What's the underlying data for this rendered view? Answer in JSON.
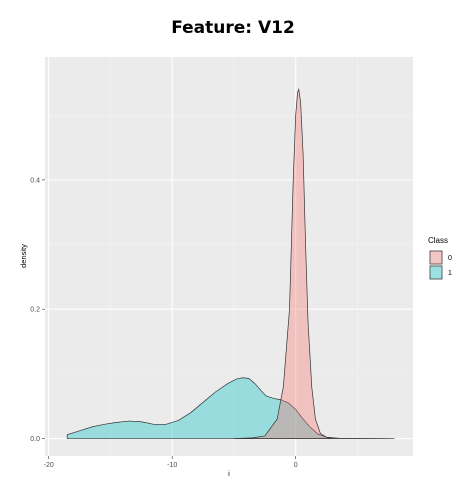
{
  "chart_data": {
    "type": "area",
    "title": "Feature:  V12",
    "xlabel": "i",
    "ylabel": "density",
    "xlim": [
      -20.3,
      9.5
    ],
    "ylim": [
      -0.027,
      0.59
    ],
    "x_ticks": [
      -20,
      -10,
      0
    ],
    "x_tick_labels": [
      "-20",
      "-10",
      "0"
    ],
    "y_ticks": [
      0.0,
      0.2,
      0.4
    ],
    "y_tick_labels": [
      "0.0",
      "0.2",
      "0.4"
    ],
    "grid": true,
    "legend": {
      "title": "Class",
      "position": "right"
    },
    "series": [
      {
        "name": "0",
        "fill": "#f8766d",
        "points": [
          [
            -5,
            0
          ],
          [
            -3.5,
            0.001
          ],
          [
            -2.5,
            0.004
          ],
          [
            -1.5,
            0.03
          ],
          [
            -1.0,
            0.08
          ],
          [
            -0.5,
            0.2
          ],
          [
            -0.2,
            0.4
          ],
          [
            0.0,
            0.5
          ],
          [
            0.15,
            0.535
          ],
          [
            0.25,
            0.54
          ],
          [
            0.4,
            0.52
          ],
          [
            0.6,
            0.44
          ],
          [
            0.8,
            0.3
          ],
          [
            1.0,
            0.18
          ],
          [
            1.3,
            0.08
          ],
          [
            1.6,
            0.03
          ],
          [
            2.0,
            0.008
          ],
          [
            2.5,
            0.002
          ],
          [
            3.0,
            0
          ]
        ]
      },
      {
        "name": "1",
        "fill": "#00bfc4",
        "points": [
          [
            -18.5,
            0.006
          ],
          [
            -17.5,
            0.012
          ],
          [
            -16.5,
            0.018
          ],
          [
            -15.5,
            0.022
          ],
          [
            -14.5,
            0.025
          ],
          [
            -13.5,
            0.027
          ],
          [
            -12.5,
            0.026
          ],
          [
            -11.5,
            0.022
          ],
          [
            -10.5,
            0.022
          ],
          [
            -9.5,
            0.028
          ],
          [
            -8.5,
            0.04
          ],
          [
            -7.5,
            0.056
          ],
          [
            -6.5,
            0.072
          ],
          [
            -5.5,
            0.085
          ],
          [
            -4.8,
            0.092
          ],
          [
            -4.3,
            0.094
          ],
          [
            -3.8,
            0.093
          ],
          [
            -3.3,
            0.085
          ],
          [
            -2.8,
            0.074
          ],
          [
            -2.4,
            0.066
          ],
          [
            -1.8,
            0.062
          ],
          [
            -1.2,
            0.06
          ],
          [
            -0.6,
            0.055
          ],
          [
            0.0,
            0.045
          ],
          [
            0.6,
            0.03
          ],
          [
            1.2,
            0.017
          ],
          [
            1.8,
            0.007
          ],
          [
            2.5,
            0.002
          ],
          [
            3.5,
            0.0005
          ],
          [
            5.0,
            0.0002
          ],
          [
            8.0,
            0
          ]
        ]
      }
    ]
  }
}
